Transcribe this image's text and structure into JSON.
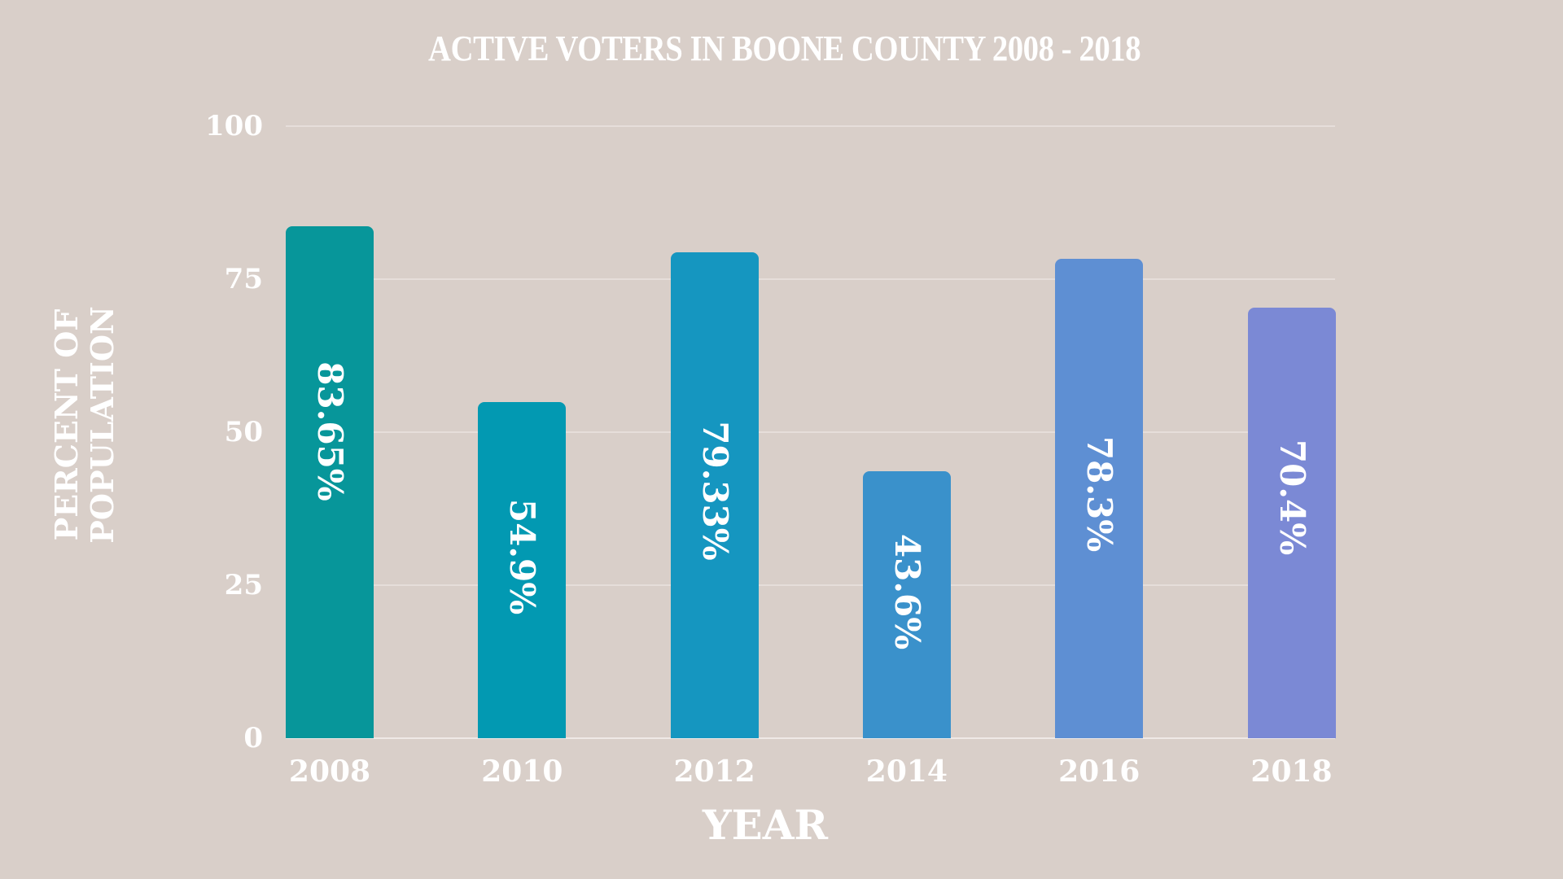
{
  "chart_data": {
    "type": "bar",
    "title": "ACTIVE VOTERS IN BOONE COUNTY 2008 - 2018",
    "xlabel": "YEAR",
    "ylabel": [
      "PERCENT OF",
      "POPULATION"
    ],
    "categories": [
      "2008",
      "2010",
      "2012",
      "2014",
      "2016",
      "2018"
    ],
    "values": [
      83.65,
      54.9,
      79.33,
      43.6,
      78.3,
      70.4
    ],
    "data_labels": [
      "83.65%",
      "54.9%",
      "79.33%",
      "43.6%",
      "78.3%",
      "70.4%"
    ],
    "bar_colors": [
      "#07969A",
      "#0299B2",
      "#1596C0",
      "#3A91CB",
      "#5E8FD3",
      "#7B89D5"
    ],
    "yticks": [
      "0",
      "25",
      "50",
      "75",
      "100"
    ],
    "ylim": [
      0,
      100
    ],
    "grid": true,
    "legend": "none"
  },
  "colors": {
    "background": "#D9CFC9",
    "text": "#FFFFFF"
  }
}
